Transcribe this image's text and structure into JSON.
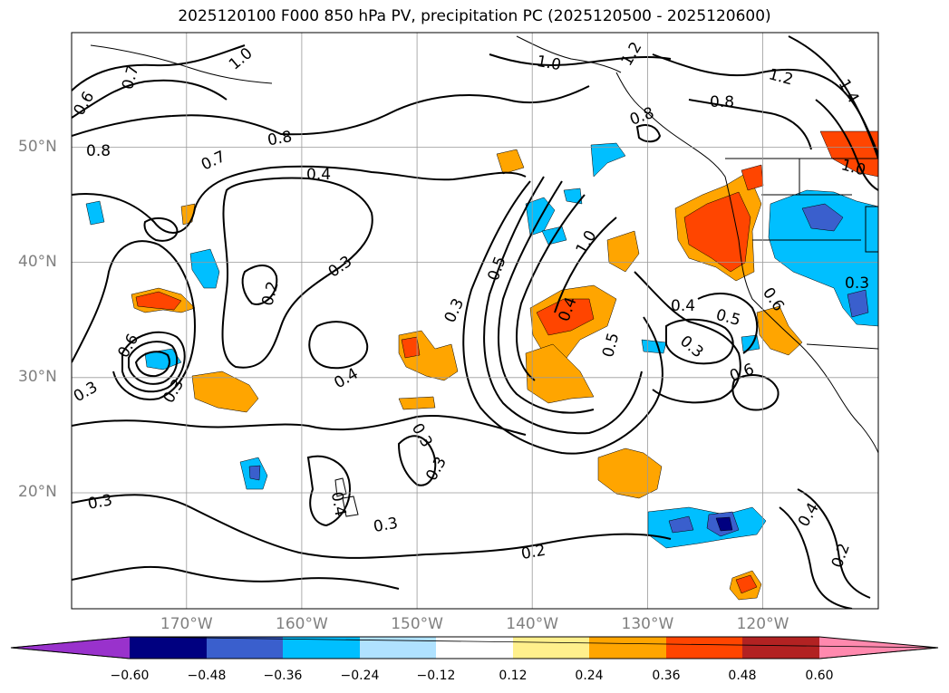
{
  "title": "2025120100 F000 850 hPa PV, precipitation PC (2025120500 - 2025120600)",
  "map": {
    "region": "North-East Pacific",
    "lat_labels": [
      "50°N",
      "40°N",
      "30°N",
      "20°N"
    ],
    "lon_labels": [
      "170°W",
      "160°W",
      "150°W",
      "140°W",
      "130°W",
      "120°W"
    ],
    "contour_labels": [
      "0.6",
      "0.7",
      "1.0",
      "0.8",
      "0.8",
      "0.7",
      "0.4",
      "0.3",
      "0.2",
      "0.3",
      "0.6",
      "0.3",
      "0.4",
      "0.3",
      "0.5",
      "1.0",
      "1.2",
      "1.0",
      "0.8",
      "1.4",
      "1.2",
      "0.8",
      "1.0",
      "0.4",
      "0.3",
      "0.5",
      "0.4",
      "0.6",
      "0.3",
      "0.6",
      "0.5",
      "0.3",
      "0.3",
      "0.3",
      "0.4",
      "0.2",
      "0.4",
      "0.2",
      "0.3"
    ]
  },
  "colorbar": {
    "ticks": [
      "−0.60",
      "−0.48",
      "−0.36",
      "−0.24",
      "−0.12",
      "0.12",
      "0.24",
      "0.36",
      "0.48",
      "0.60"
    ],
    "colors": [
      "#9932cc",
      "#000080",
      "#3a5fcd",
      "#00bfff",
      "#b0e2ff",
      "#ffffff",
      "#fff08c",
      "#ffa500",
      "#ff4500",
      "#b22222",
      "#ff89ae"
    ]
  }
}
